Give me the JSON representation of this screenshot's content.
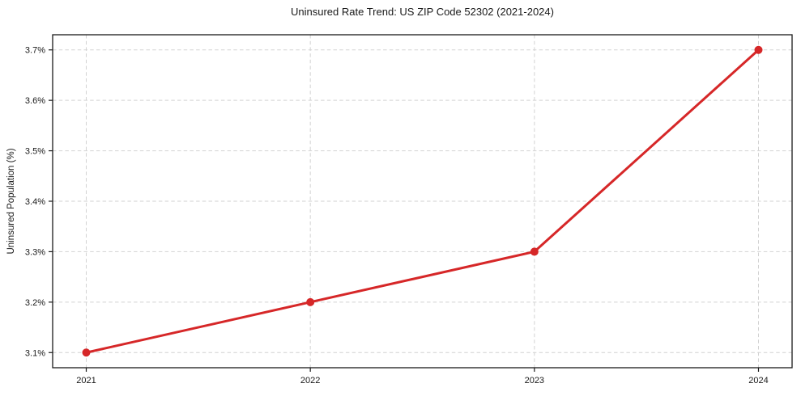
{
  "chart_data": {
    "type": "line",
    "title": "Uninsured Rate Trend: US ZIP Code 52302 (2021-2024)",
    "xlabel": "",
    "ylabel": "Uninsured Population (%)",
    "x": [
      2021,
      2022,
      2023,
      2024
    ],
    "xtick_labels": [
      "2021",
      "2022",
      "2023",
      "2024"
    ],
    "series": [
      {
        "name": "Uninsured Rate",
        "values": [
          3.1,
          3.2,
          3.3,
          3.7
        ]
      }
    ],
    "yticks": [
      3.1,
      3.2,
      3.3,
      3.4,
      3.5,
      3.6,
      3.7
    ],
    "ytick_labels": [
      "3.1%",
      "3.2%",
      "3.3%",
      "3.4%",
      "3.5%",
      "3.6%",
      "3.7%"
    ],
    "xlim": [
      2020.85,
      2024.15
    ],
    "ylim": [
      3.07,
      3.73
    ],
    "grid": true,
    "grid_style": "dashed",
    "legend": false,
    "colors": {
      "line": "#d62728",
      "marker": "#d62728",
      "grid": "#d2d2d2",
      "spine": "#1a1a1a",
      "text": "#1a1a1a",
      "background": "#ffffff"
    }
  }
}
